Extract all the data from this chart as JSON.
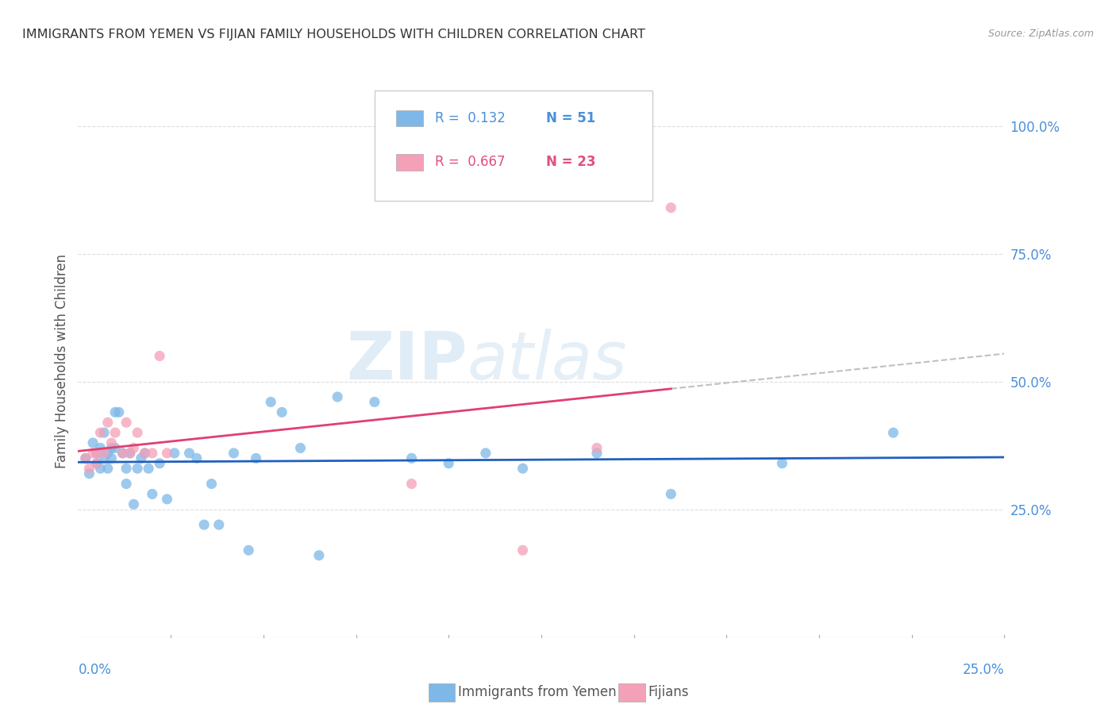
{
  "title": "IMMIGRANTS FROM YEMEN VS FIJIAN FAMILY HOUSEHOLDS WITH CHILDREN CORRELATION CHART",
  "source": "Source: ZipAtlas.com",
  "ylabel": "Family Households with Children",
  "xlim": [
    0.0,
    0.25
  ],
  "ylim": [
    0.0,
    1.08
  ],
  "legend_r_color_blue": "#4a90d9",
  "legend_r_color_pink": "#e05080",
  "legend_n_color_blue": "#4a90d9",
  "legend_n_color_pink": "#e05080",
  "yemen_x": [
    0.002,
    0.003,
    0.004,
    0.005,
    0.005,
    0.006,
    0.006,
    0.007,
    0.007,
    0.008,
    0.008,
    0.009,
    0.009,
    0.01,
    0.01,
    0.011,
    0.012,
    0.013,
    0.013,
    0.014,
    0.015,
    0.016,
    0.017,
    0.018,
    0.019,
    0.02,
    0.022,
    0.024,
    0.026,
    0.03,
    0.032,
    0.034,
    0.036,
    0.038,
    0.042,
    0.046,
    0.048,
    0.052,
    0.055,
    0.06,
    0.065,
    0.07,
    0.08,
    0.09,
    0.1,
    0.11,
    0.12,
    0.14,
    0.16,
    0.19,
    0.22
  ],
  "yemen_y": [
    0.35,
    0.32,
    0.38,
    0.36,
    0.34,
    0.37,
    0.33,
    0.35,
    0.4,
    0.36,
    0.33,
    0.37,
    0.35,
    0.44,
    0.37,
    0.44,
    0.36,
    0.33,
    0.3,
    0.36,
    0.26,
    0.33,
    0.35,
    0.36,
    0.33,
    0.28,
    0.34,
    0.27,
    0.36,
    0.36,
    0.35,
    0.22,
    0.3,
    0.22,
    0.36,
    0.17,
    0.35,
    0.46,
    0.44,
    0.37,
    0.16,
    0.47,
    0.46,
    0.35,
    0.34,
    0.36,
    0.33,
    0.36,
    0.28,
    0.34,
    0.4
  ],
  "fijian_x": [
    0.002,
    0.003,
    0.004,
    0.005,
    0.005,
    0.006,
    0.007,
    0.008,
    0.009,
    0.01,
    0.012,
    0.013,
    0.014,
    0.015,
    0.016,
    0.018,
    0.02,
    0.022,
    0.024,
    0.09,
    0.12,
    0.14,
    0.16
  ],
  "fijian_y": [
    0.35,
    0.33,
    0.36,
    0.34,
    0.36,
    0.4,
    0.36,
    0.42,
    0.38,
    0.4,
    0.36,
    0.42,
    0.36,
    0.37,
    0.4,
    0.36,
    0.36,
    0.55,
    0.36,
    0.3,
    0.17,
    0.37,
    0.84
  ],
  "scatter_blue": "#7db8e8",
  "scatter_pink": "#f4a0b8",
  "line_blue": "#2060c0",
  "line_pink": "#e04070",
  "line_dashed_color": "#c0c0c0",
  "background_color": "#ffffff",
  "grid_color": "#dddddd",
  "tick_label_color": "#4a90d9",
  "watermark_color": "#cce0f0"
}
